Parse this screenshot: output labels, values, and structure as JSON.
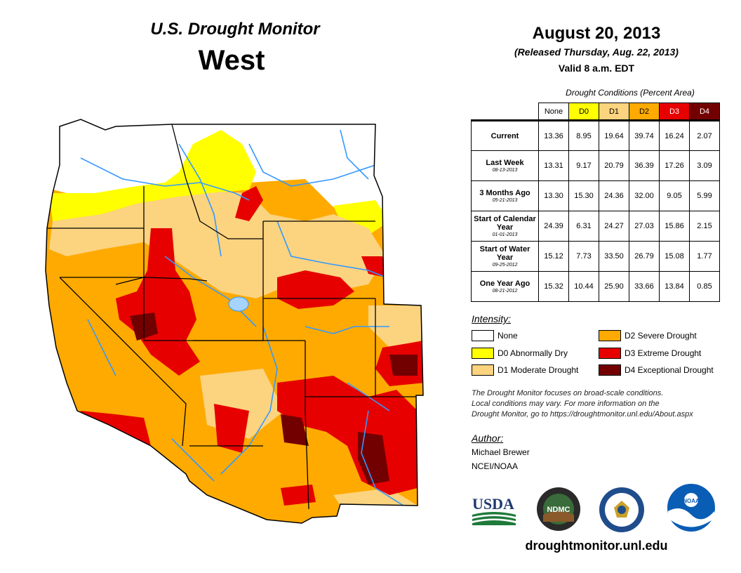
{
  "title": {
    "main": "U.S. Drought Monitor",
    "region": "West"
  },
  "date": {
    "main": "August 20, 2013",
    "released": "(Released Thursday, Aug. 22, 2013)",
    "valid": "Valid 8 a.m. EDT"
  },
  "conditions": {
    "title": "Drought Conditions (Percent Area)",
    "headers": [
      "None",
      "D0",
      "D1",
      "D2",
      "D3",
      "D4"
    ],
    "header_colors": [
      "#ffffff",
      "#ffff00",
      "#fcd37f",
      "#ffaa00",
      "#e60000",
      "#730000"
    ],
    "rows": [
      {
        "label": "Current",
        "date": "",
        "values": [
          "13.36",
          "8.95",
          "19.64",
          "39.74",
          "16.24",
          "2.07"
        ]
      },
      {
        "label": "Last Week",
        "date": "08-13-2013",
        "values": [
          "13.31",
          "9.17",
          "20.79",
          "36.39",
          "17.26",
          "3.09"
        ]
      },
      {
        "label": "3 Months Ago",
        "date": "05-21-2013",
        "values": [
          "13.30",
          "15.30",
          "24.36",
          "32.00",
          "9.05",
          "5.99"
        ]
      },
      {
        "label": "Start of Calendar Year",
        "date": "01-01-2013",
        "values": [
          "24.39",
          "6.31",
          "24.27",
          "27.03",
          "15.86",
          "2.15"
        ]
      },
      {
        "label": "Start of Water Year",
        "date": "09-25-2012",
        "values": [
          "15.12",
          "7.73",
          "33.50",
          "26.79",
          "15.08",
          "1.77"
        ]
      },
      {
        "label": "One Year Ago",
        "date": "08-21-2012",
        "values": [
          "15.32",
          "10.44",
          "25.90",
          "33.66",
          "13.84",
          "0.85"
        ]
      }
    ]
  },
  "legend": {
    "title": "Intensity:",
    "items": [
      {
        "label": "None",
        "color": "#ffffff"
      },
      {
        "label": "D0 Abnormally Dry",
        "color": "#ffff00"
      },
      {
        "label": "D1 Moderate Drought",
        "color": "#fcd37f"
      },
      {
        "label": "D2 Severe Drought",
        "color": "#ffaa00"
      },
      {
        "label": "D3 Extreme Drought",
        "color": "#e60000"
      },
      {
        "label": "D4 Exceptional Drought",
        "color": "#730000"
      }
    ]
  },
  "disclaimer": {
    "line1": "The Drought Monitor focuses on broad-scale conditions.",
    "line2": "Local conditions may vary. For more information on the",
    "line3": "Drought Monitor, go to https://droughtmonitor.unl.edu/About.aspx"
  },
  "author": {
    "heading": "Author:",
    "name": "Michael Brewer",
    "org": "NCEI/NOAA"
  },
  "logos": {
    "usda": "USDA",
    "ndmc": "NDMC",
    "noaa": "NOAA"
  },
  "website": "droughtmonitor.unl.edu"
}
